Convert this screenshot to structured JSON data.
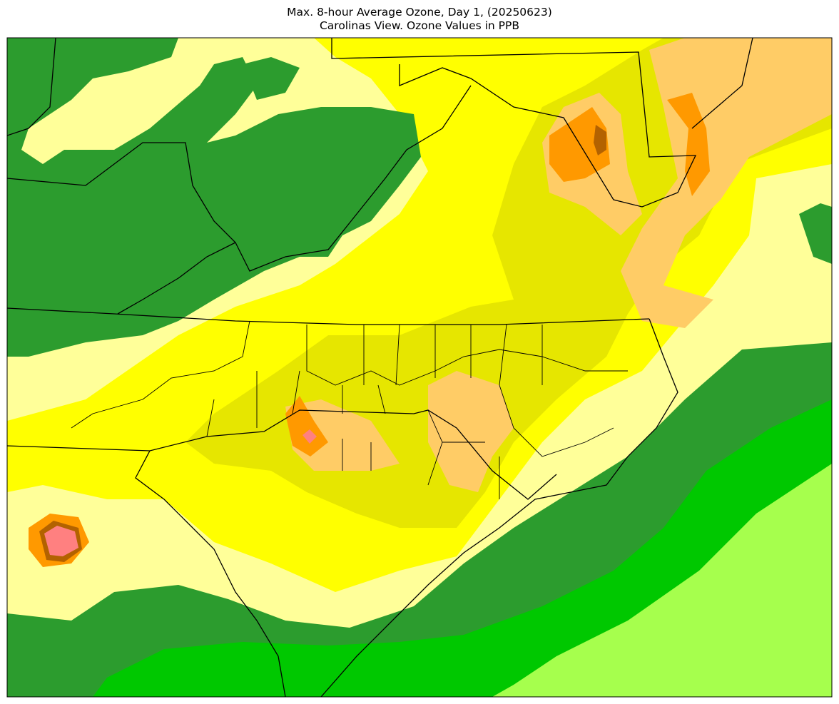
{
  "title": {
    "line1": "Max. 8-hour Average Ozone, Day 1, (20250623)",
    "line2": "Carolinas View. Ozone Values in PPB"
  }
}
